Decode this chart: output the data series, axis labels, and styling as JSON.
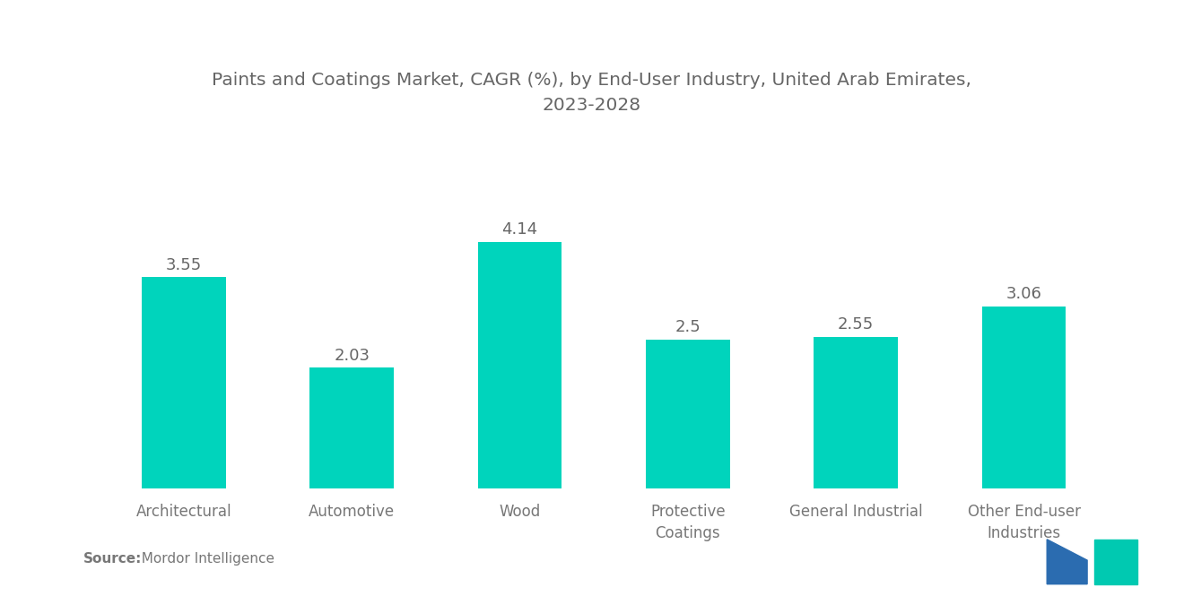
{
  "title": "Paints and Coatings Market, CAGR (%), by End-User Industry, United Arab Emirates,\n2023-2028",
  "categories": [
    "Architectural",
    "Automotive",
    "Wood",
    "Protective\nCoatings",
    "General Industrial",
    "Other End-user\nIndustries"
  ],
  "values": [
    3.55,
    2.03,
    4.14,
    2.5,
    2.55,
    3.06
  ],
  "bar_color": "#00D4BC",
  "background_color": "#ffffff",
  "title_color": "#666666",
  "label_color": "#777777",
  "value_color": "#666666",
  "source_bold": "Source:",
  "source_rest": "  Mordor Intelligence",
  "ylim": [
    0,
    5.2
  ],
  "bar_width": 0.5,
  "title_fontsize": 14.5,
  "tick_fontsize": 12,
  "value_fontsize": 13,
  "source_fontsize": 11,
  "logo_left_color": "#2B6CB0",
  "logo_right_color": "#00C9B1"
}
